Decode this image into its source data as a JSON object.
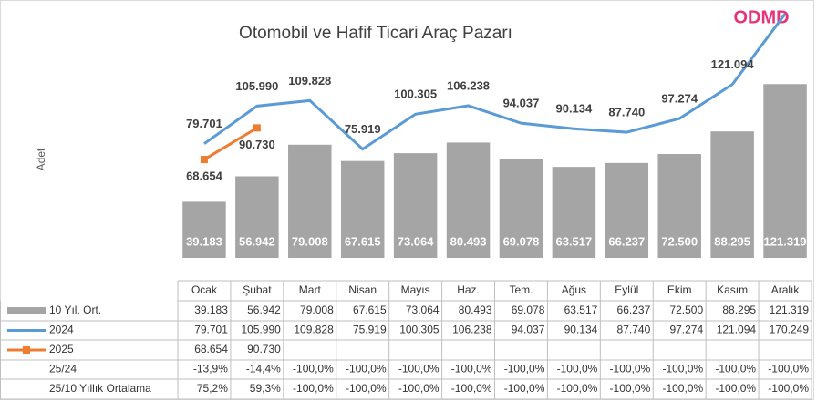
{
  "chart_data": {
    "type": "bar_line",
    "title": "Otomobil ve Hafif Ticari Araç Pazarı",
    "logo": "ODMD",
    "y_label": "Adet",
    "categories": [
      "Ocak",
      "Şubat",
      "Mart",
      "Nisan",
      "Mayıs",
      "Haz.",
      "Tem.",
      "Ağus",
      "Eylül",
      "Ekim",
      "Kasım",
      "Aralık"
    ],
    "ylim": [
      0,
      180000
    ],
    "series": [
      {
        "name": "10 Yıl. Ort.",
        "kind": "bar",
        "color": "#a5a5a5",
        "values": [
          39183,
          56942,
          79008,
          67615,
          73064,
          80493,
          69078,
          63517,
          66237,
          72500,
          88295,
          121319
        ],
        "value_labels": [
          "39.183",
          "56.942",
          "79.008",
          "67.615",
          "73.064",
          "80.493",
          "69.078",
          "63.517",
          "66.237",
          "72.500",
          "88.295",
          "121.319"
        ]
      },
      {
        "name": "2024",
        "kind": "line",
        "color": "#5b9bd5",
        "values": [
          79701,
          105990,
          109828,
          75919,
          100305,
          106238,
          94037,
          90134,
          87740,
          97274,
          121094,
          170249
        ],
        "value_labels": [
          "79.701",
          "105.990",
          "109.828",
          "75.919",
          "100.305",
          "106.238",
          "94.037",
          "90.134",
          "87.740",
          "97.274",
          "121.094",
          "170.249"
        ]
      },
      {
        "name": "2025",
        "kind": "line",
        "color": "#ed7d31",
        "marker": "square",
        "values": [
          68654,
          90730,
          null,
          null,
          null,
          null,
          null,
          null,
          null,
          null,
          null,
          null
        ],
        "value_labels": [
          "68.654",
          "90.730",
          null,
          null,
          null,
          null,
          null,
          null,
          null,
          null,
          null,
          null
        ]
      }
    ],
    "extra_rows": [
      {
        "name": "25/24",
        "values": [
          "-13,9%",
          "-14,4%",
          "-100,0%",
          "-100,0%",
          "-100,0%",
          "-100,0%",
          "-100,0%",
          "-100,0%",
          "-100,0%",
          "-100,0%",
          "-100,0%",
          "-100,0%"
        ]
      },
      {
        "name": "25/10 Yıllık Ortalama",
        "values": [
          "75,2%",
          "59,3%",
          "-100,0%",
          "-100,0%",
          "-100,0%",
          "-100,0%",
          "-100,0%",
          "-100,0%",
          "-100,0%",
          "-100,0%",
          "-100,0%",
          "-100,0%"
        ]
      }
    ]
  }
}
